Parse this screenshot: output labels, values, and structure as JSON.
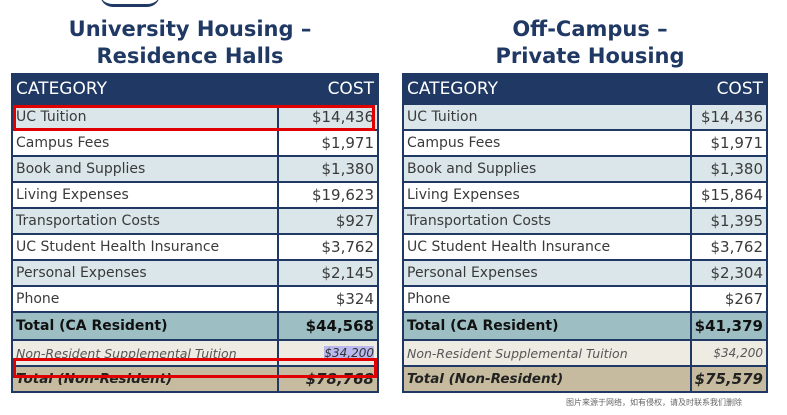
{
  "left": {
    "heading": [
      "University Housing –",
      "Residence Halls"
    ],
    "header": {
      "category": "CATEGORY",
      "cost": "COST"
    },
    "rows": [
      {
        "category": "UC Tuition",
        "cost": "$14,436"
      },
      {
        "category": "Campus Fees",
        "cost": "$1,971"
      },
      {
        "category": "Book and Supplies",
        "cost": "$1,380"
      },
      {
        "category": "Living Expenses",
        "cost": "$19,623"
      },
      {
        "category": "Transportation Costs",
        "cost": "$927"
      },
      {
        "category": "UC Student Health Insurance",
        "cost": "$3,762"
      },
      {
        "category": "Personal Expenses",
        "cost": "$2,145"
      },
      {
        "category": "Phone",
        "cost": "$324"
      }
    ],
    "total": {
      "category": "Total (CA Resident)",
      "cost": "$44,568"
    },
    "nonres_supp": {
      "category": "Non-Resident Supplemental Tuition",
      "cost": "$34,200"
    },
    "nonres_total": {
      "category": "Total (Non-Resident)",
      "cost": "$78,768"
    }
  },
  "right": {
    "heading": [
      "Off-Campus –",
      "Private Housing"
    ],
    "header": {
      "category": "CATEGORY",
      "cost": "COST"
    },
    "rows": [
      {
        "category": "UC Tuition",
        "cost": "$14,436"
      },
      {
        "category": "Campus Fees",
        "cost": "$1,971"
      },
      {
        "category": "Book and Supplies",
        "cost": "$1,380"
      },
      {
        "category": "Living Expenses",
        "cost": "$15,864"
      },
      {
        "category": "Transportation Costs",
        "cost": "$1,395"
      },
      {
        "category": "UC Student Health Insurance",
        "cost": "$3,762"
      },
      {
        "category": "Personal Expenses",
        "cost": "$2,304"
      },
      {
        "category": "Phone",
        "cost": "$267"
      }
    ],
    "total": {
      "category": "Total (CA Resident)",
      "cost": "$41,379"
    },
    "nonres_supp": {
      "category": "Non-Resident Supplemental Tuition",
      "cost": "$34,200"
    },
    "nonres_total": {
      "category": "Total (Non-Resident)",
      "cost": "$75,579"
    }
  },
  "watermark": "图片来源于网络，如有侵权，请及时联系我们删除",
  "colors": {
    "header": "#1f3864",
    "row_shade": "#dae6e9",
    "total": "#9dbfc3",
    "nonres": "#eeebe3",
    "nonres_total": "#c6bb9e",
    "highlight": "#e00000"
  }
}
